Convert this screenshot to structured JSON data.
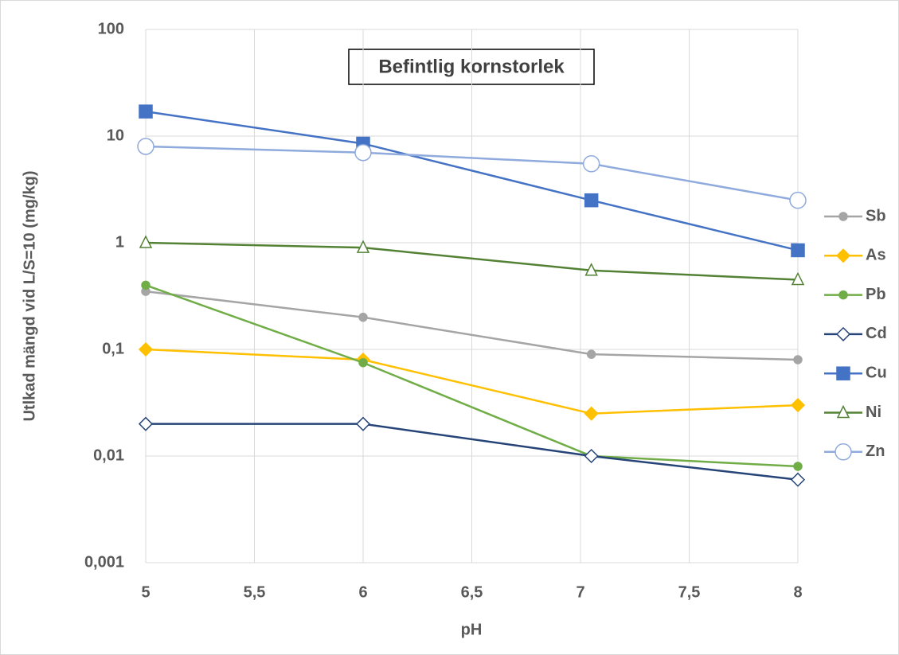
{
  "chart_data": {
    "type": "line",
    "title": "Befintlig kornstorlek",
    "x_label": "pH",
    "y_label": "Utlkad mängd vid L/S=10 (mg/kg)",
    "log_y": true,
    "grid": true,
    "legend": "right",
    "xlim": [
      5,
      8
    ],
    "xticks": [
      5,
      {
        "value": 5.5,
        "label": "5,5"
      },
      6,
      {
        "value": 6.5,
        "label": "6,5"
      },
      7,
      {
        "value": 7.5,
        "label": "7,5"
      },
      8
    ],
    "ylim": [
      0.001,
      100
    ],
    "yticks": [
      {
        "value": 0.001,
        "label": "0,001"
      },
      {
        "value": 0.01,
        "label": "0,01"
      },
      {
        "value": 0.1,
        "label": "0,1"
      },
      1,
      10,
      100
    ],
    "x": [
      5,
      6,
      7.05,
      8
    ],
    "series": [
      {
        "name": "Sb",
        "color": "#a5a5a5",
        "marker": "circle",
        "filled": true,
        "values": [
          0.35,
          0.2,
          0.09,
          0.08
        ]
      },
      {
        "name": "As",
        "color": "#ffc000",
        "marker": "diamond",
        "filled": true,
        "values": [
          0.1,
          0.08,
          0.025,
          0.03
        ]
      },
      {
        "name": "Pb",
        "color": "#70ad47",
        "marker": "circle",
        "filled": true,
        "values": [
          0.4,
          0.075,
          0.01,
          0.008
        ]
      },
      {
        "name": "Cd",
        "color": "#264478",
        "marker": "diamond",
        "filled": false,
        "values": [
          0.02,
          0.02,
          0.01,
          0.006
        ]
      },
      {
        "name": "Cu",
        "color": "#4472c4",
        "marker": "square",
        "filled": true,
        "values": [
          17,
          8.5,
          2.5,
          0.85
        ]
      },
      {
        "name": "Ni",
        "color": "#548235",
        "marker": "triangle",
        "filled": false,
        "values": [
          1,
          0.9,
          0.55,
          0.45
        ]
      },
      {
        "name": "Zn",
        "color": "#8faadc",
        "marker": "bigcircle",
        "filled": false,
        "values": [
          8,
          7,
          5.5,
          2.5
        ]
      }
    ]
  }
}
